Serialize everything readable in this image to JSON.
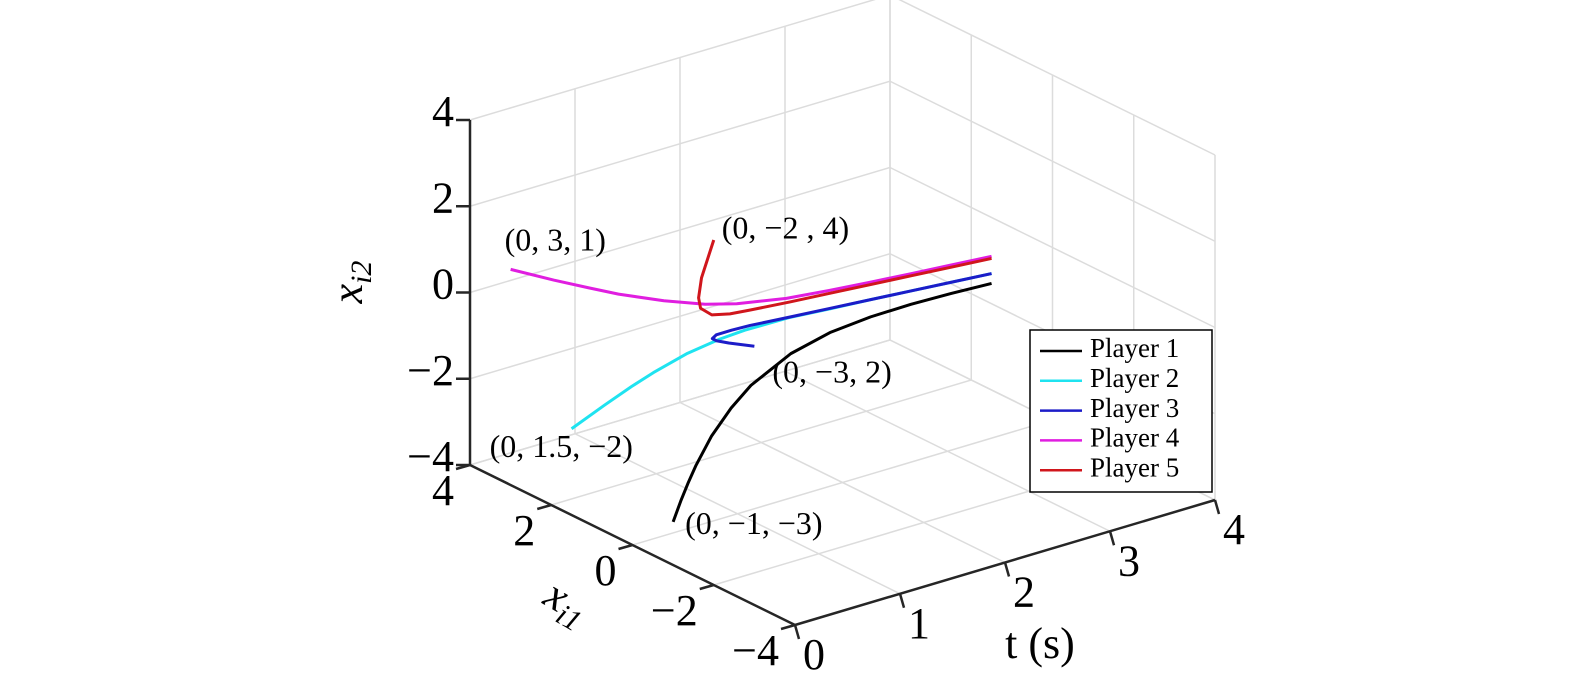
{
  "chart_data": {
    "type": "line3d",
    "tlabel": "t (s)",
    "x1label": {
      "text": "x",
      "sub": "i1"
    },
    "x2label": {
      "text": "x",
      "sub": "i2"
    },
    "tlim": [
      0,
      4
    ],
    "x1lim": [
      -4,
      4
    ],
    "x2lim": [
      -4,
      4
    ],
    "tticks": [
      0,
      1,
      2,
      3,
      4
    ],
    "x1ticks": [
      {
        "value": -4,
        "label": "−4"
      },
      {
        "value": -2,
        "label": "−2"
      },
      0,
      2,
      4
    ],
    "x2ticks": [
      {
        "value": -4,
        "label": "−4"
      },
      {
        "value": -2,
        "label": "−2"
      },
      0,
      2,
      4
    ],
    "grid": true,
    "legend_position": "right",
    "series": [
      {
        "name": "Player 1",
        "color": "#000000",
        "start_label": "(0, −1, −3)",
        "t": [
          0,
          0.1,
          0.2,
          0.3,
          0.5,
          0.75,
          1,
          1.5,
          2,
          2.5,
          3,
          3.5,
          4
        ],
        "x1": [
          -1,
          -0.93,
          -0.86,
          -0.79,
          -0.65,
          -0.49,
          -0.33,
          -0.02,
          0.29,
          0.6,
          0.9,
          1.2,
          1.5
        ],
        "x2": [
          -3,
          -2.62,
          -2.29,
          -2.0,
          -1.54,
          -1.14,
          -0.87,
          -0.64,
          -0.65,
          -0.8,
          -1.01,
          -1.26,
          -1.53
        ]
      },
      {
        "name": "Player 2",
        "color": "#1fe3f0",
        "start_label": "(0, 1.5, −2)",
        "t": [
          0,
          0.1,
          0.2,
          0.3,
          0.5,
          0.75,
          1,
          1.5,
          2,
          2.5,
          3,
          3.5,
          4
        ],
        "x1": [
          1.5,
          0.94,
          0.54,
          0.26,
          -0.06,
          -0.2,
          -0.18,
          0.03,
          0.3,
          0.6,
          0.9,
          1.2,
          1.5
        ],
        "x2": [
          -2,
          -1.26,
          -0.72,
          -0.34,
          0.11,
          0.32,
          0.34,
          0.17,
          -0.11,
          -0.4,
          -0.7,
          -1.0,
          -1.3
        ]
      },
      {
        "name": "Player 3",
        "color": "#1c1cc8",
        "start_label": "(0, −3, 2)",
        "t": [
          0,
          0.1,
          0.2,
          0.3,
          0.5,
          0.75,
          1,
          1.5,
          2,
          2.5,
          3,
          3.5,
          4
        ],
        "x1": [
          -3,
          -2.11,
          -1.55,
          -1.19,
          -0.77,
          -0.5,
          -0.31,
          0,
          0.3,
          0.6,
          0.9,
          1.2,
          1.5
        ],
        "x2": [
          2,
          1.59,
          1.31,
          1.12,
          0.87,
          0.67,
          0.51,
          0.2,
          -0.1,
          -0.4,
          -0.7,
          -1.0,
          -1.3
        ]
      },
      {
        "name": "Player 4",
        "color": "#e01ee0",
        "start_label": "(0, 3, 1)",
        "t": [
          0,
          0.1,
          0.2,
          0.3,
          0.5,
          0.75,
          1,
          1.5,
          2,
          2.5,
          3,
          3.5,
          4
        ],
        "x1": [
          3,
          2.2,
          1.59,
          1.12,
          0.52,
          0.15,
          0.02,
          0.09,
          0.33,
          0.61,
          0.9,
          1.2,
          1.5
        ],
        "x2": [
          1,
          1.05,
          1.08,
          1.08,
          1.06,
          0.97,
          0.86,
          0.59,
          0.3,
          0.0,
          -0.3,
          -0.6,
          -0.9
        ]
      },
      {
        "name": "Player 5",
        "color": "#d0161c",
        "start_label": "(0, −2 , 4)",
        "t": [
          0,
          0.1,
          0.2,
          0.3,
          0.5,
          0.75,
          1,
          1.5,
          2,
          2.5,
          3,
          3.5,
          4
        ],
        "x1": [
          -2,
          -1.44,
          -1.11,
          -0.9,
          -0.66,
          -0.46,
          -0.3,
          0,
          0.3,
          0.6,
          0.9,
          1.2,
          1.5
        ],
        "x2": [
          4,
          2.79,
          2.1,
          1.69,
          1.28,
          1.03,
          0.86,
          0.55,
          0.25,
          -0.05,
          -0.35,
          -0.65,
          -0.95
        ]
      }
    ]
  }
}
